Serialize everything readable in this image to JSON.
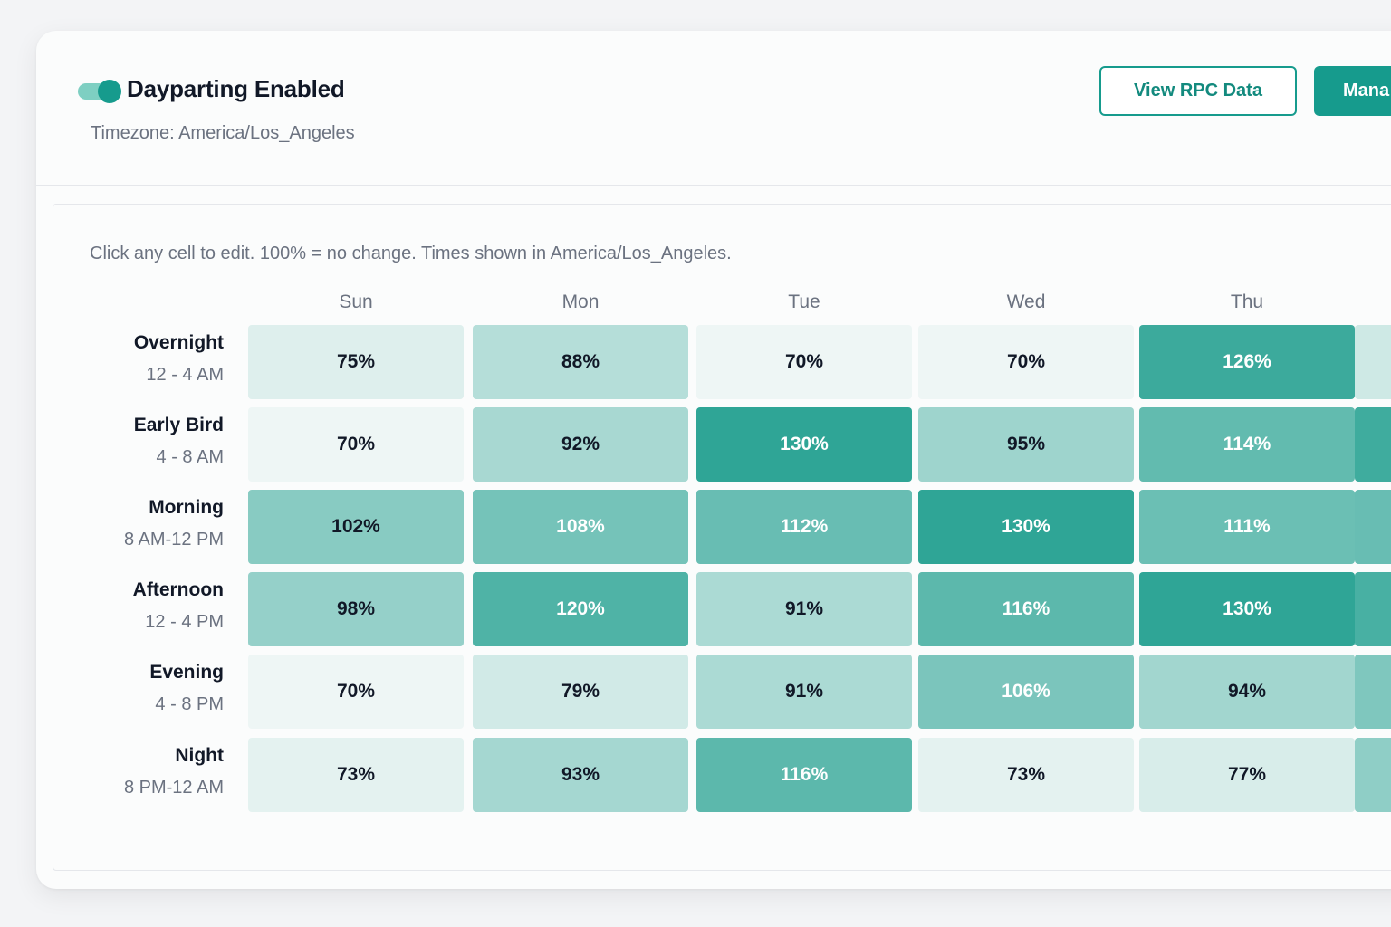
{
  "header": {
    "toggle_on": true,
    "title": "Dayparting Enabled",
    "timezone": "Timezone: America/Los_Angeles",
    "view_rpc_label": "View RPC Data",
    "manage_label": "Mana"
  },
  "grid": {
    "note": "Click any cell to edit. 100% = no change. Times shown in America/Los_Angeles.",
    "days": [
      "Sun",
      "Mon",
      "Tue",
      "Wed",
      "Thu"
    ],
    "rows": [
      {
        "name": "Overnight",
        "range": "12 - 4 AM",
        "values": [
          75,
          88,
          70,
          70,
          126
        ],
        "labels": [
          "75%",
          "88%",
          "70%",
          "70%",
          "126%"
        ]
      },
      {
        "name": "Early Bird",
        "range": "4 - 8 AM",
        "values": [
          70,
          92,
          130,
          95,
          114
        ],
        "labels": [
          "70%",
          "92%",
          "130%",
          "95%",
          "114%"
        ]
      },
      {
        "name": "Morning",
        "range": "8 AM-12 PM",
        "values": [
          102,
          108,
          112,
          130,
          111
        ],
        "labels": [
          "102%",
          "108%",
          "112%",
          "130%",
          "111%"
        ]
      },
      {
        "name": "Afternoon",
        "range": "12 - 4 PM",
        "values": [
          98,
          120,
          91,
          116,
          130
        ],
        "labels": [
          "98%",
          "120%",
          "91%",
          "116%",
          "130%"
        ]
      },
      {
        "name": "Evening",
        "range": "4 - 8 PM",
        "values": [
          70,
          79,
          91,
          106,
          94
        ],
        "labels": [
          "70%",
          "79%",
          "91%",
          "106%",
          "94%"
        ]
      },
      {
        "name": "Night",
        "range": "8 PM-12 AM",
        "values": [
          73,
          93,
          116,
          73,
          77
        ],
        "labels": [
          "73%",
          "93%",
          "116%",
          "73%",
          "77%"
        ]
      }
    ]
  },
  "colors": {
    "accent": "#169b8d",
    "scale_low": "#eef6f5",
    "scale_high": "#2fa596"
  }
}
